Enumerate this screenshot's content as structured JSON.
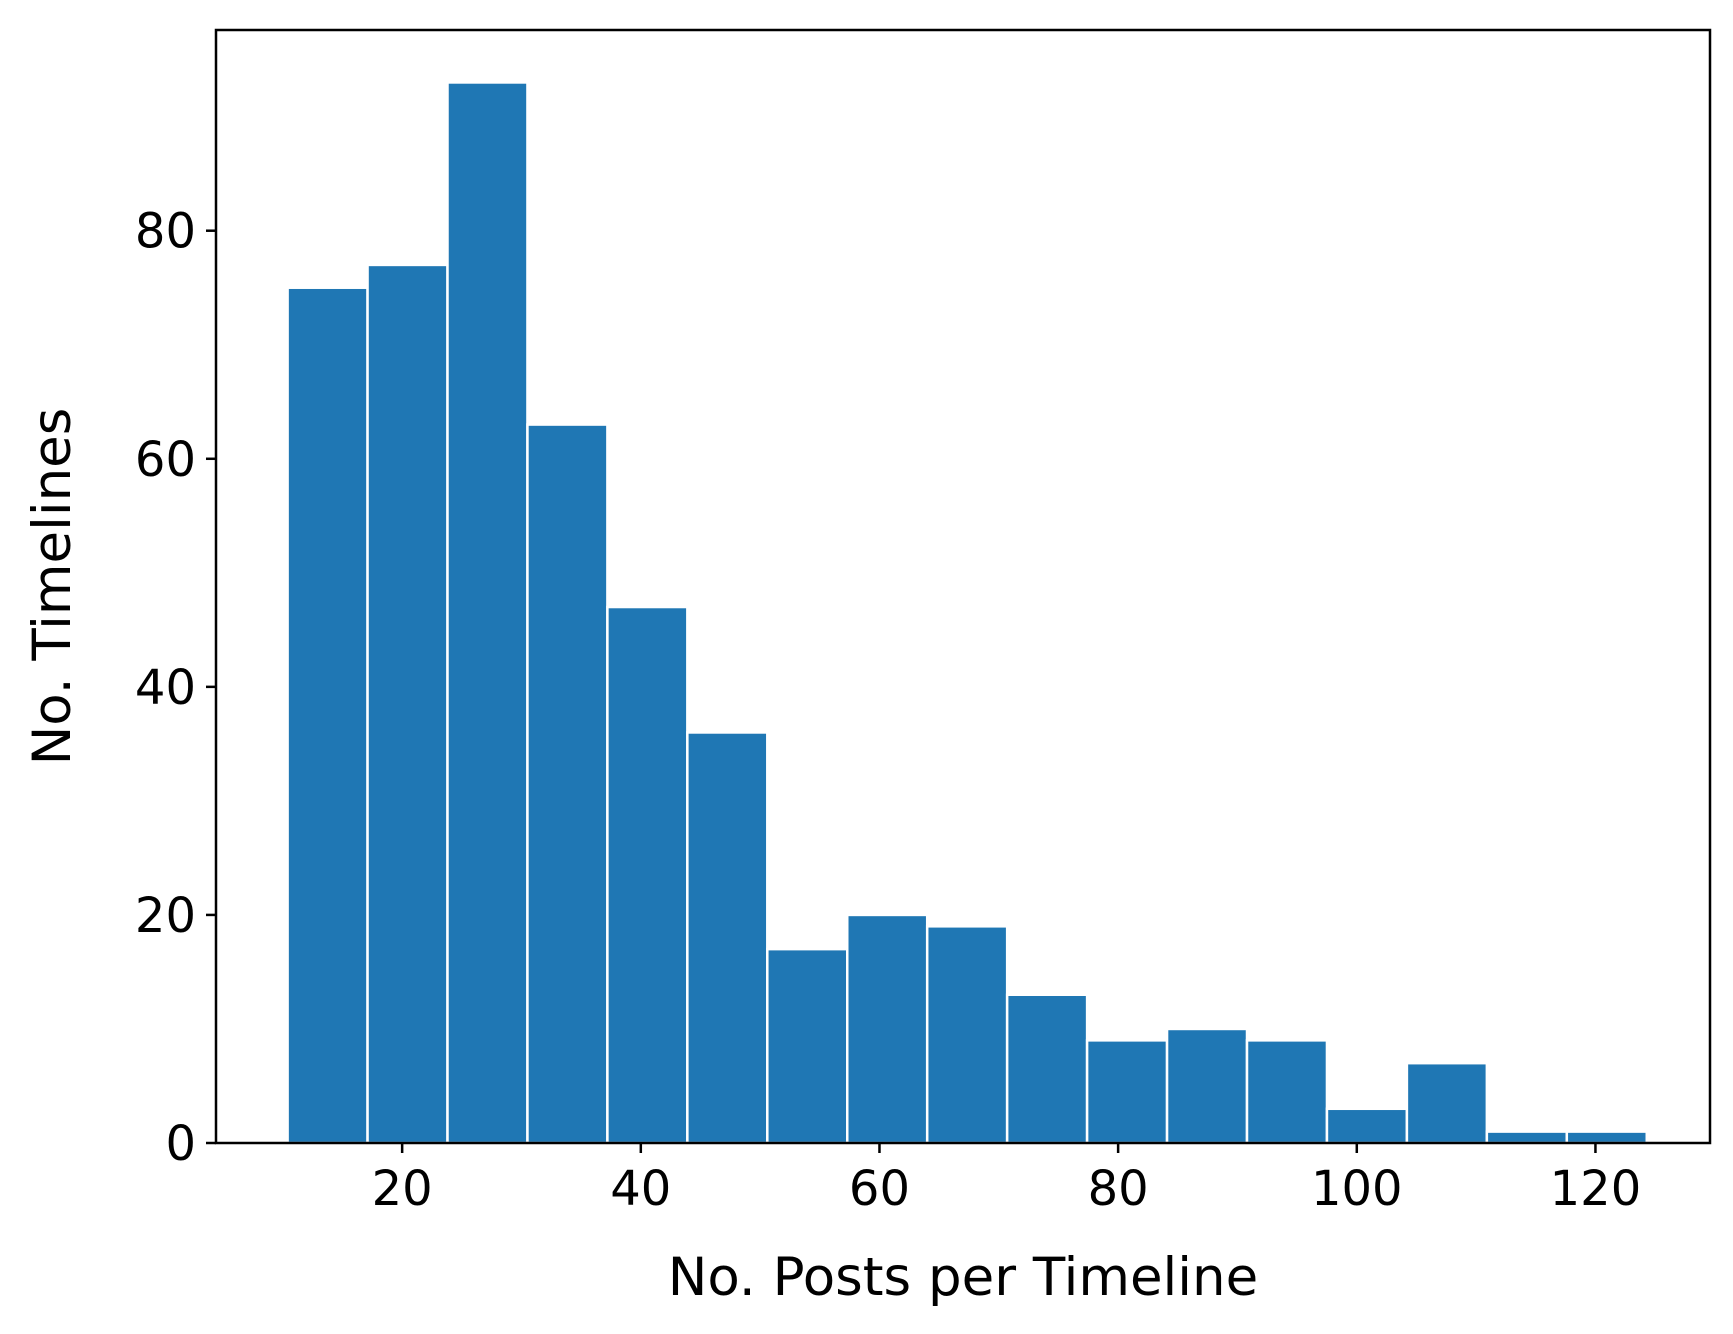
{
  "chart_data": {
    "type": "bar",
    "title": "",
    "xlabel": "No. Posts per Timeline",
    "ylabel": "No. Timelines",
    "xlim": [
      4.4,
      129.6
    ],
    "ylim": [
      0,
      97.6
    ],
    "xticks": [
      20,
      40,
      60,
      80,
      100,
      120
    ],
    "yticks": [
      0,
      20,
      40,
      60,
      80
    ],
    "bin_edges": [
      10.4,
      17.1,
      23.8,
      30.5,
      37.2,
      43.9,
      50.6,
      57.3,
      64.0,
      70.7,
      77.4,
      84.1,
      90.8,
      97.5,
      104.2,
      110.9,
      117.6,
      124.3
    ],
    "values": [
      75,
      77,
      93,
      63,
      47,
      36,
      17,
      20,
      19,
      13,
      9,
      10,
      9,
      3,
      7,
      1,
      1
    ],
    "bar_color": "#1f77b4",
    "grid": false
  }
}
